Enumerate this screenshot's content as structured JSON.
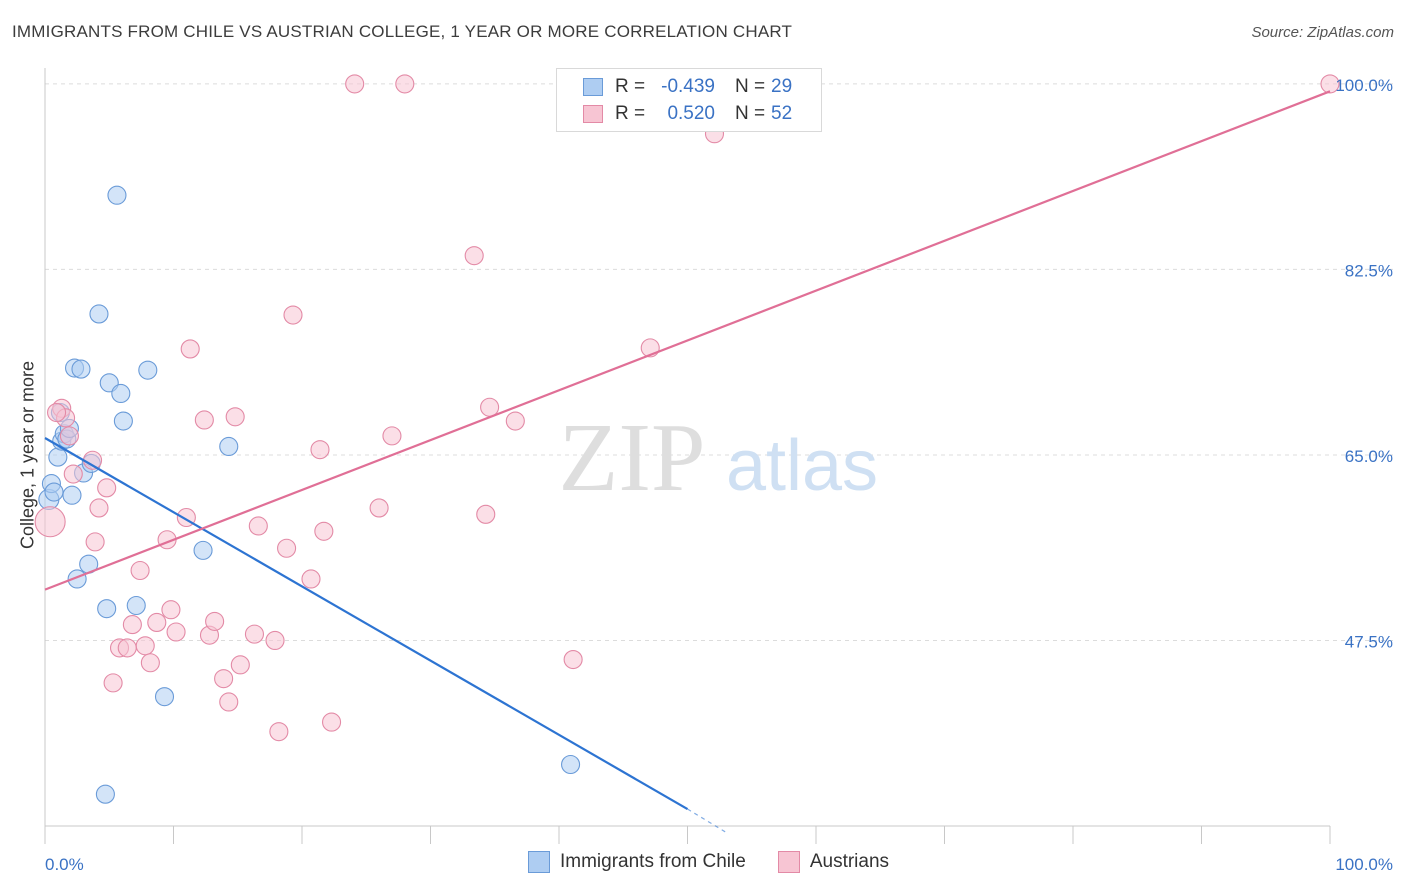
{
  "title": "IMMIGRANTS FROM CHILE VS AUSTRIAN COLLEGE, 1 YEAR OR MORE CORRELATION CHART",
  "source": "Source: ZipAtlas.com",
  "watermark": {
    "zip": "ZIP",
    "atlas": "atlas"
  },
  "legend": {
    "rows": [
      {
        "r_label": "R =",
        "r_value": "-0.439",
        "n_label": "N =",
        "n_value": "29"
      },
      {
        "r_label": "R =",
        "r_value": "0.520",
        "n_label": "N =",
        "n_value": "52"
      }
    ]
  },
  "bottom_legend": [
    "Immigrants from Chile",
    "Austrians"
  ],
  "colors": {
    "blue_fill": "#aecdf2",
    "blue_stroke": "#6a9bd8",
    "blue_line": "#2d74d2",
    "pink_fill": "#f7c5d3",
    "pink_stroke": "#e38aa6",
    "pink_line": "#e06f96",
    "tick_text": "#3a72c4"
  },
  "chart_data": {
    "type": "scatter",
    "title": "IMMIGRANTS FROM CHILE VS AUSTRIAN COLLEGE, 1 YEAR OR MORE CORRELATION CHART",
    "xlabel": "",
    "ylabel": "College, 1 year or more",
    "xlim": [
      0,
      100
    ],
    "ylim": [
      30,
      101.5
    ],
    "x_tick_labels": [
      "0.0%",
      "100.0%"
    ],
    "y_ticks": [
      {
        "value": 100,
        "label": "100.0%"
      },
      {
        "value": 82.5,
        "label": "82.5%"
      },
      {
        "value": 65,
        "label": "65.0%"
      },
      {
        "value": 47.5,
        "label": "47.5%"
      }
    ],
    "series": [
      {
        "name": "Immigrants from Chile",
        "color": "blue",
        "r": -0.439,
        "n": 29,
        "points": [
          [
            0.3,
            60.8,
            10
          ],
          [
            0.5,
            62.3,
            9
          ],
          [
            0.7,
            61.5,
            9
          ],
          [
            1.0,
            64.8,
            9
          ],
          [
            1.2,
            69.0,
            9
          ],
          [
            1.3,
            66.3,
            9
          ],
          [
            1.5,
            67.0,
            9
          ],
          [
            1.7,
            66.5,
            9
          ],
          [
            1.9,
            67.5,
            9
          ],
          [
            2.1,
            61.2,
            9
          ],
          [
            2.3,
            73.2,
            9
          ],
          [
            2.5,
            53.3,
            9
          ],
          [
            2.8,
            73.1,
            9
          ],
          [
            3.0,
            63.3,
            9
          ],
          [
            3.4,
            54.7,
            9
          ],
          [
            3.6,
            64.2,
            9
          ],
          [
            4.2,
            78.3,
            9
          ],
          [
            4.8,
            50.5,
            9
          ],
          [
            5.0,
            71.8,
            9
          ],
          [
            5.6,
            89.5,
            9
          ],
          [
            5.9,
            70.8,
            9
          ],
          [
            6.1,
            68.2,
            9
          ],
          [
            7.1,
            50.8,
            9
          ],
          [
            8.0,
            73.0,
            9
          ],
          [
            9.3,
            42.2,
            9
          ],
          [
            12.3,
            56.0,
            9
          ],
          [
            14.3,
            65.8,
            9
          ],
          [
            4.7,
            33.0,
            9
          ],
          [
            40.9,
            35.8,
            9
          ]
        ]
      },
      {
        "name": "Austrians",
        "color": "pink",
        "r": 0.52,
        "n": 52,
        "points": [
          [
            0.4,
            58.7,
            15
          ],
          [
            1.3,
            69.4,
            9
          ],
          [
            1.6,
            68.5,
            9
          ],
          [
            1.9,
            66.8,
            9
          ],
          [
            2.2,
            63.2,
            9
          ],
          [
            3.7,
            64.5,
            9
          ],
          [
            3.9,
            56.8,
            9
          ],
          [
            4.2,
            60.0,
            9
          ],
          [
            4.8,
            61.9,
            9
          ],
          [
            5.3,
            43.5,
            9
          ],
          [
            5.8,
            46.8,
            9
          ],
          [
            6.4,
            46.8,
            9
          ],
          [
            6.8,
            49.0,
            9
          ],
          [
            7.4,
            54.1,
            9
          ],
          [
            7.8,
            47.0,
            9
          ],
          [
            8.2,
            45.4,
            9
          ],
          [
            8.7,
            49.2,
            9
          ],
          [
            9.5,
            57.0,
            9
          ],
          [
            9.8,
            50.4,
            9
          ],
          [
            10.2,
            48.3,
            9
          ],
          [
            11.0,
            59.1,
            9
          ],
          [
            11.3,
            75.0,
            9
          ],
          [
            12.4,
            68.3,
            9
          ],
          [
            12.8,
            48.0,
            9
          ],
          [
            13.2,
            49.3,
            9
          ],
          [
            13.9,
            43.9,
            9
          ],
          [
            14.3,
            41.7,
            9
          ],
          [
            14.8,
            68.6,
            9
          ],
          [
            15.2,
            45.2,
            9
          ],
          [
            16.3,
            48.1,
            9
          ],
          [
            16.6,
            58.3,
            9
          ],
          [
            17.9,
            47.5,
            9
          ],
          [
            18.2,
            38.9,
            9
          ],
          [
            18.8,
            56.2,
            9
          ],
          [
            19.3,
            78.2,
            9
          ],
          [
            20.7,
            53.3,
            9
          ],
          [
            21.4,
            65.5,
            9
          ],
          [
            21.7,
            57.8,
            9
          ],
          [
            22.3,
            39.8,
            9
          ],
          [
            24.1,
            100.0,
            9
          ],
          [
            26.0,
            60.0,
            9
          ],
          [
            27.0,
            66.8,
            9
          ],
          [
            28.0,
            100.0,
            9
          ],
          [
            33.4,
            83.8,
            9
          ],
          [
            34.3,
            59.4,
            9
          ],
          [
            34.6,
            69.5,
            9
          ],
          [
            36.6,
            68.2,
            9
          ],
          [
            41.1,
            45.7,
            9
          ],
          [
            47.1,
            75.1,
            9
          ],
          [
            52.1,
            95.3,
            9
          ],
          [
            100.0,
            100.0,
            9
          ],
          [
            0.9,
            69.0,
            9
          ]
        ]
      }
    ],
    "trendlines": [
      {
        "series": "Immigrants from Chile",
        "x": [
          0.0,
          50.0
        ],
        "y": [
          66.6,
          31.6
        ],
        "dashed_to": [
          53.0,
          29.4
        ]
      },
      {
        "series": "Austrians",
        "x": [
          0.0,
          100.0
        ],
        "y": [
          52.3,
          99.3
        ]
      }
    ]
  }
}
